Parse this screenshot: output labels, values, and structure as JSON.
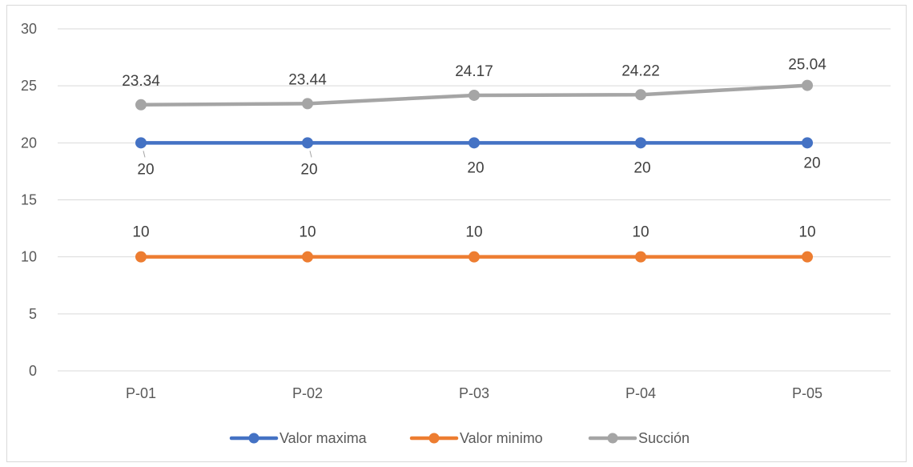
{
  "chart_data": {
    "type": "line",
    "categories": [
      "P-01",
      "P-02",
      "P-03",
      "P-04",
      "P-05"
    ],
    "ylim": [
      0,
      30
    ],
    "yticks": [
      0,
      5,
      10,
      15,
      20,
      25,
      30
    ],
    "grid": true,
    "legend_position": "bottom",
    "series": [
      {
        "name": "Valor maxima",
        "values": [
          20,
          20,
          20,
          20,
          20
        ],
        "color": "#4472c4",
        "labels": [
          "20",
          "20",
          "20",
          "20",
          "20"
        ]
      },
      {
        "name": "Valor minimo",
        "values": [
          10,
          10,
          10,
          10,
          10
        ],
        "color": "#ed7d31",
        "labels": [
          "10",
          "10",
          "10",
          "10",
          "10"
        ]
      },
      {
        "name": "Succión",
        "values": [
          23.34,
          23.44,
          24.17,
          24.22,
          25.04
        ],
        "color": "#a5a5a5",
        "labels": [
          "23.34",
          "23.44",
          "24.17",
          "24.22",
          "25.04"
        ]
      }
    ]
  }
}
